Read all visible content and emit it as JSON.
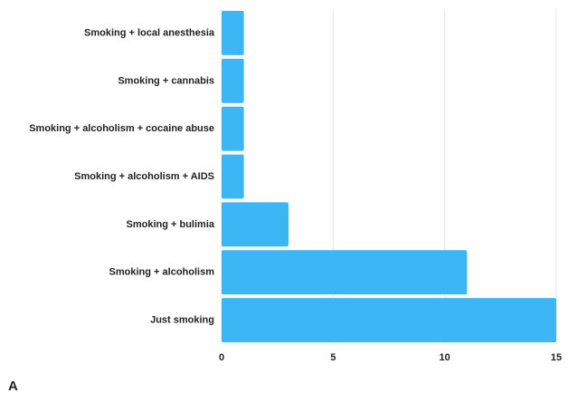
{
  "panel_label": "A",
  "chart_data": {
    "type": "bar",
    "orientation": "horizontal",
    "categories": [
      "Smoking + local anesthesia",
      "Smoking + cannabis",
      "Smoking + alcoholism + cocaine abuse",
      "Smoking + alcoholism + AIDS",
      "Smoking + bulimia",
      "Smoking + alcoholism",
      "Just smoking"
    ],
    "values": [
      1,
      1,
      1,
      1,
      3,
      11,
      15
    ],
    "xlim": [
      0,
      15
    ],
    "xticks": [
      0,
      5,
      10,
      15
    ],
    "grid": "vertical",
    "legend": "none",
    "title": "",
    "xlabel": "",
    "ylabel": "",
    "bar_color": "#3db6f5",
    "grid_color": "#e6e6e6"
  }
}
